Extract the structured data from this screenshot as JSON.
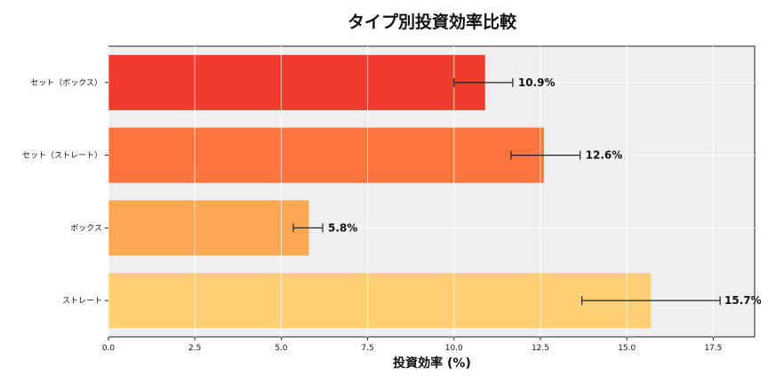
{
  "chart_data": {
    "type": "bar",
    "orientation": "horizontal",
    "title": "タイプ別投資効率比較",
    "xlabel": "投資効率 (%)",
    "ylabel": "",
    "xlim": [
      0,
      18.7
    ],
    "xticks": [
      0.0,
      2.5,
      5.0,
      7.5,
      10.0,
      12.5,
      15.0,
      17.5
    ],
    "xtick_labels": [
      "0.0",
      "2.5",
      "5.0",
      "7.5",
      "10.0",
      "12.5",
      "15.0",
      "17.5"
    ],
    "grid": true,
    "background": "#efefef",
    "categories": [
      "セット（ボックス）",
      "セット（ストレート）",
      "ボックス",
      "ストレート"
    ],
    "values": [
      10.9,
      12.6,
      5.8,
      15.7
    ],
    "value_labels": [
      "10.9%",
      "12.6%",
      "5.8%",
      "15.7%"
    ],
    "error_bars": [
      {
        "low": 10.0,
        "high": 11.7
      },
      {
        "low": 11.65,
        "high": 13.65
      },
      {
        "low": 5.35,
        "high": 6.2
      },
      {
        "low": 13.7,
        "high": 17.7
      }
    ],
    "colors": [
      "#ee3124",
      "#fc6b33",
      "#fca248",
      "#fecb6a"
    ]
  }
}
